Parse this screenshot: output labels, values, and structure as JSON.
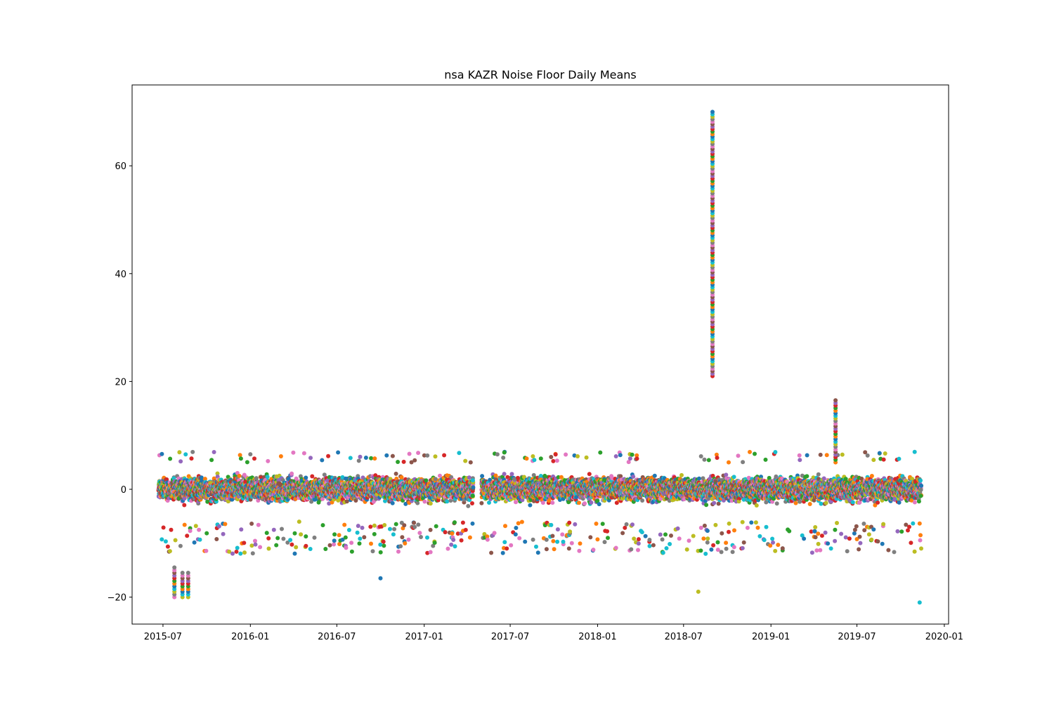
{
  "chart_data": {
    "type": "scatter",
    "title": "nsa KAZR Noise Floor Daily Means",
    "xlabel": "",
    "ylabel": "",
    "x_axis": "date",
    "xlim": [
      "2015-04-27",
      "2020-01-10"
    ],
    "ylim": [
      -25,
      75
    ],
    "xticks": [
      "2015-07",
      "2016-01",
      "2016-07",
      "2017-01",
      "2017-07",
      "2018-01",
      "2018-07",
      "2019-01",
      "2019-07",
      "2020-01"
    ],
    "yticks": [
      -20,
      0,
      20,
      40,
      60
    ],
    "grid": false,
    "legend": "none",
    "marker_colors": [
      "#1f77b4",
      "#ff7f0e",
      "#2ca02c",
      "#d62728",
      "#9467bd",
      "#8c564b",
      "#e377c2",
      "#7f7f7f",
      "#bcbd22",
      "#17becf"
    ],
    "data_range": {
      "x": [
        "2015-06-22",
        "2019-11-13"
      ],
      "gaps": [
        [
          "2017-04-15",
          "2017-05-01"
        ]
      ]
    },
    "typical_band": [
      -5,
      5
    ],
    "notable_points": [
      {
        "label": "spike",
        "x": "2018-08-31",
        "y_min": 21,
        "y_max": 70
      },
      {
        "label": "spike",
        "x": "2019-05-17",
        "y_min": 5,
        "y_max": 16.5
      },
      {
        "label": "outlier cluster",
        "x": "2015-07-25",
        "y_min": -20,
        "y_max": -14.5
      },
      {
        "label": "outlier cluster",
        "x": "2015-08-11",
        "y_min": -20,
        "y_max": -15.5
      },
      {
        "label": "outlier cluster",
        "x": "2015-08-23",
        "y_min": -20,
        "y_max": -15.5
      },
      {
        "label": "outlier",
        "x": "2018-08-01",
        "y_min": -19,
        "y_max": -19
      },
      {
        "label": "outlier",
        "x": "2019-11-10",
        "y_min": -21,
        "y_max": -21
      },
      {
        "label": "outlier",
        "x": "2016-10-01",
        "y_min": -16.5,
        "y_max": -16.5
      }
    ]
  }
}
